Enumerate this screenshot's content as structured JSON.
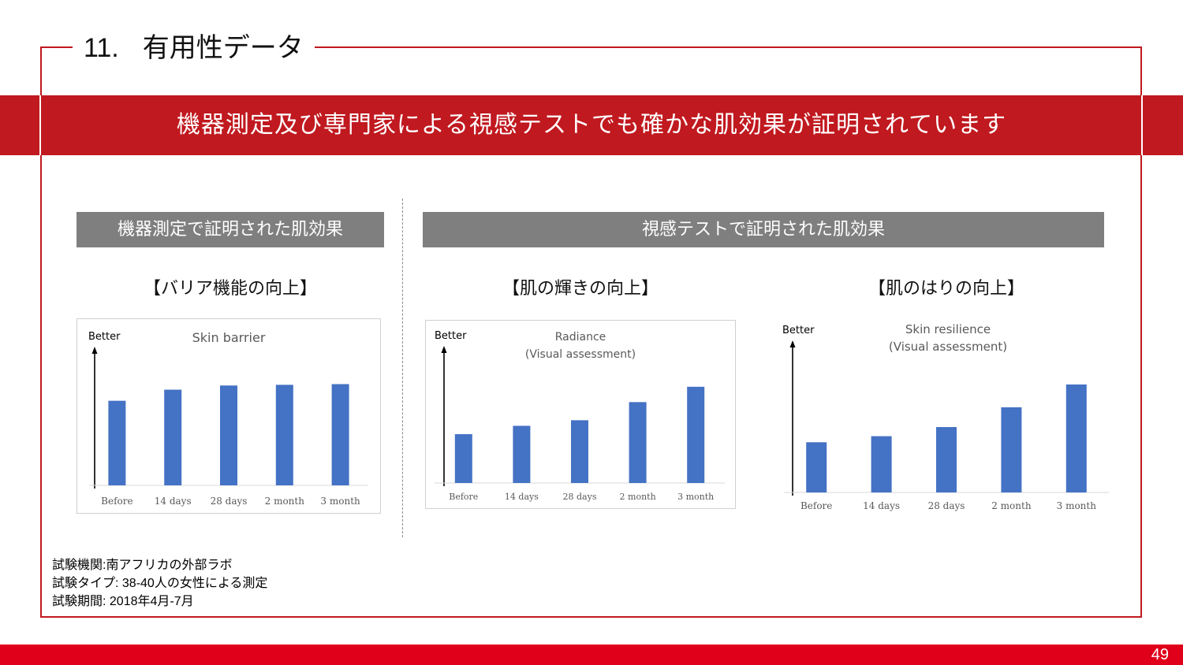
{
  "header": {
    "number": "11.",
    "title": "有用性データ"
  },
  "banner": {
    "text": "機器測定及び専門家による視感テストでも確かな肌効果が証明されています"
  },
  "left_panel": {
    "heading": "機器測定で証明された肌効果"
  },
  "right_panel": {
    "heading": "視感テストで証明された肌効果"
  },
  "charts": [
    {
      "caption": "【バリア機能の向上】"
    },
    {
      "caption": "【肌の輝きの向上】"
    },
    {
      "caption": "【肌のはりの向上】"
    }
  ],
  "chart_data": [
    {
      "type": "bar",
      "title": "Skin barrier",
      "ylabel": "Better",
      "categories": [
        "Before",
        "14 days",
        "28 days",
        "2 month",
        "3 month"
      ],
      "values": [
        61,
        69,
        72,
        72.5,
        73
      ],
      "ylim": [
        0,
        100
      ],
      "bar_color": "#4472c4",
      "grid": false
    },
    {
      "type": "bar",
      "title": "Radiance\n(Visual assessment)",
      "title_lines": [
        "Radiance",
        "(Visual assessment)"
      ],
      "ylabel": "Better",
      "categories": [
        "Before",
        "14 days",
        "28 days",
        "2 month",
        "3 month"
      ],
      "values": [
        35,
        41,
        45,
        58,
        69
      ],
      "ylim": [
        0,
        100
      ],
      "bar_color": "#4472c4",
      "grid": false
    },
    {
      "type": "bar",
      "title": "Skin resilience\n(Visual assessment)",
      "title_lines": [
        "Skin resilience",
        "(Visual assessment)"
      ],
      "ylabel": "Better",
      "categories": [
        "Before",
        "14 days",
        "28 days",
        "2 month",
        "3 month"
      ],
      "values": [
        33,
        37,
        43,
        56,
        71
      ],
      "ylim": [
        0,
        100
      ],
      "bar_color": "#4472c4",
      "grid": false
    }
  ],
  "notes": [
    "試験機関:南アフリカの外部ラボ",
    "試験タイプ: 38-40人の女性による測定",
    "試験期間: 2018年4月-7月"
  ],
  "footer": {
    "page_number": "49"
  },
  "colors": {
    "accent_red": "#c0191f",
    "footer_red": "#e0001a",
    "heading_gray": "#7f7f7f"
  }
}
